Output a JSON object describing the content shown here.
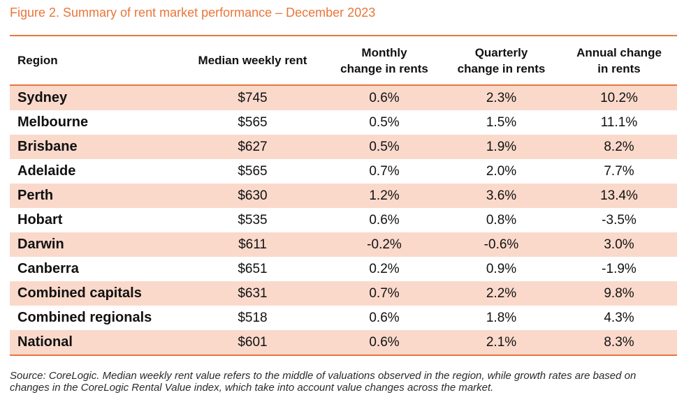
{
  "figure": {
    "title": "Figure 2. Summary of rent market performance – December 2023",
    "source": "Source: CoreLogic. Median weekly rent value refers to the middle of valuations observed in the region, while growth rates are based on changes in the CoreLogic Rental Value index, which take into account value changes across the market."
  },
  "table": {
    "headers": {
      "region": "Region",
      "median": "Median weekly rent",
      "monthly_l1": "Monthly",
      "monthly_l2": "change in rents",
      "quarterly_l1": "Quarterly",
      "quarterly_l2": "change in rents",
      "annual_l1": "Annual change",
      "annual_l2": "in rents"
    },
    "rows": [
      {
        "region": "Sydney",
        "median": "$745",
        "monthly": "0.6%",
        "quarterly": "2.3%",
        "annual": "10.2%"
      },
      {
        "region": "Melbourne",
        "median": "$565",
        "monthly": "0.5%",
        "quarterly": "1.5%",
        "annual": "11.1%"
      },
      {
        "region": "Brisbane",
        "median": "$627",
        "monthly": "0.5%",
        "quarterly": "1.9%",
        "annual": "8.2%"
      },
      {
        "region": "Adelaide",
        "median": "$565",
        "monthly": "0.7%",
        "quarterly": "2.0%",
        "annual": "7.7%"
      },
      {
        "region": "Perth",
        "median": "$630",
        "monthly": "1.2%",
        "quarterly": "3.6%",
        "annual": "13.4%"
      },
      {
        "region": "Hobart",
        "median": "$535",
        "monthly": "0.6%",
        "quarterly": "0.8%",
        "annual": "-3.5%"
      },
      {
        "region": "Darwin",
        "median": "$611",
        "monthly": "-0.2%",
        "quarterly": "-0.6%",
        "annual": "3.0%"
      },
      {
        "region": "Canberra",
        "median": "$651",
        "monthly": "0.2%",
        "quarterly": "0.9%",
        "annual": "-1.9%"
      },
      {
        "region": "Combined capitals",
        "median": "$631",
        "monthly": "0.7%",
        "quarterly": "2.2%",
        "annual": "9.8%"
      },
      {
        "region": "Combined regionals",
        "median": "$518",
        "monthly": "0.6%",
        "quarterly": "1.8%",
        "annual": "4.3%"
      },
      {
        "region": "National",
        "median": "$601",
        "monthly": "0.6%",
        "quarterly": "2.1%",
        "annual": "8.3%"
      }
    ]
  },
  "colors": {
    "accent": "#e8763b",
    "row_shade": "#fad9cb"
  }
}
